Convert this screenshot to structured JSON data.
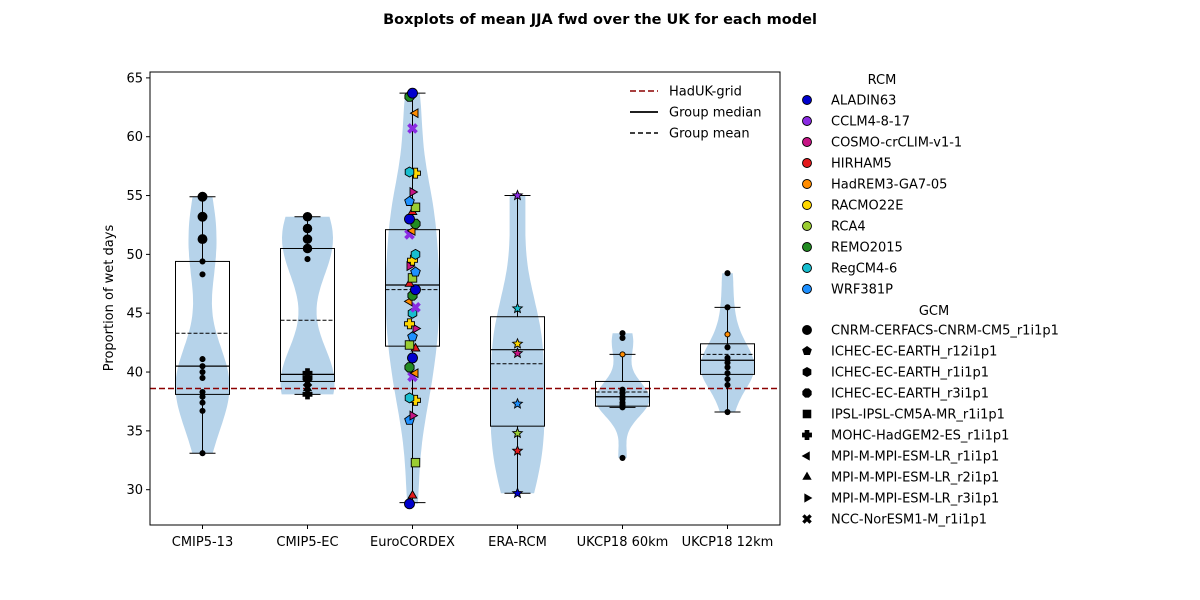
{
  "chart_data": {
    "type": "boxplot",
    "title": "Boxplots of mean JJA fwd over the UK for each model",
    "xlabel": "",
    "ylabel": "Proportion of wet days",
    "ylim": [
      27.0,
      65.5
    ],
    "yticks": [
      30,
      35,
      40,
      45,
      50,
      55,
      60,
      65
    ],
    "grid": false,
    "categories": [
      "CMIP5-13",
      "CMIP5-EC",
      "EuroCORDEX",
      "ERA-RCM",
      "UKCP18 60km",
      "UKCP18 12km"
    ],
    "reference_line": {
      "name": "HadUK-grid",
      "value": 38.6,
      "color": "#8b0000"
    },
    "legend_lines": [
      "HadUK-grid",
      "Group median",
      "Group mean"
    ],
    "legend_placement": "top-right",
    "boxes": [
      {
        "category": "CMIP5-13",
        "whisker_low": 33.1,
        "q1": 38.1,
        "median": 40.5,
        "q3": 49.4,
        "whisker_high": 54.9,
        "mean": 43.3,
        "points": [
          33.1,
          36.7,
          37.4,
          37.9,
          38.3,
          39.5,
          40.0,
          40.5,
          41.1,
          48.3,
          49.4,
          51.3,
          53.2,
          54.9
        ]
      },
      {
        "category": "CMIP5-EC",
        "whisker_low": 38.1,
        "q1": 39.2,
        "median": 39.8,
        "q3": 50.5,
        "whisker_high": 53.2,
        "mean": 44.4,
        "points": [
          38.1,
          38.6,
          39.1,
          39.5,
          39.9,
          49.6,
          50.5,
          51.3,
          52.2,
          53.2
        ]
      },
      {
        "category": "EuroCORDEX",
        "whisker_low": 28.9,
        "q1": 42.2,
        "median": 47.4,
        "q3": 52.1,
        "whisker_high": 63.7,
        "mean": 47.0,
        "points": [
          28.8,
          29.5,
          32.3,
          35.9,
          36.3,
          37.6,
          37.8,
          39.6,
          39.9,
          40.4,
          41.2,
          42.0,
          42.3,
          43.0,
          43.7,
          44.1,
          45.0,
          45.5,
          46.0,
          46.5,
          47.0,
          47.5,
          48.0,
          48.5,
          49.0,
          49.5,
          50.0,
          51.7,
          52.0,
          52.6,
          53.0,
          53.6,
          54.0,
          54.5,
          55.3,
          56.9,
          57.0,
          60.7,
          62.0,
          63.4,
          63.7
        ]
      },
      {
        "category": "ERA-RCM",
        "whisker_low": 29.7,
        "q1": 35.4,
        "median": 41.9,
        "q3": 44.7,
        "whisker_high": 55.0,
        "mean": 40.7,
        "points": [
          29.7,
          33.3,
          34.8,
          37.3,
          41.6,
          42.4,
          45.4,
          55.0
        ]
      },
      {
        "category": "UKCP18 60km",
        "whisker_low": 37.0,
        "q1": 37.1,
        "median": 37.9,
        "q3": 39.2,
        "whisker_high": 41.5,
        "mean": 38.3,
        "points": [
          32.7,
          37.0,
          37.2,
          37.4,
          37.7,
          37.9,
          38.2,
          38.5,
          41.5,
          42.9,
          43.3
        ]
      },
      {
        "category": "UKCP18 12km",
        "whisker_low": 36.6,
        "q1": 39.8,
        "median": 41.0,
        "q3": 42.4,
        "whisker_high": 45.5,
        "mean": 41.5,
        "points": [
          36.6,
          38.9,
          39.4,
          39.9,
          40.4,
          40.8,
          41.2,
          42.1,
          43.2,
          45.5,
          48.4
        ]
      }
    ],
    "rcm_legend": {
      "title": "RCM",
      "items": [
        {
          "name": "ALADIN63",
          "color": "#0000cd"
        },
        {
          "name": "CCLM4-8-17",
          "color": "#8a2be2"
        },
        {
          "name": "COSMO-crCLIM-v1-1",
          "color": "#c71585"
        },
        {
          "name": "HIRHAM5",
          "color": "#e31a1c"
        },
        {
          "name": "HadREM3-GA7-05",
          "color": "#ff8c00"
        },
        {
          "name": "RACMO22E",
          "color": "#ffd700"
        },
        {
          "name": "RCA4",
          "color": "#9acd32"
        },
        {
          "name": "REMO2015",
          "color": "#228b22"
        },
        {
          "name": "RegCM4-6",
          "color": "#17becf"
        },
        {
          "name": "WRF381P",
          "color": "#1e90ff"
        }
      ]
    },
    "gcm_legend": {
      "title": "GCM",
      "items": [
        {
          "name": "CNRM-CERFACS-CNRM-CM5_r1i1p1",
          "marker": "circle"
        },
        {
          "name": "ICHEC-EC-EARTH_r12i1p1",
          "marker": "pentagon"
        },
        {
          "name": "ICHEC-EC-EARTH_r1i1p1",
          "marker": "hexagon"
        },
        {
          "name": "ICHEC-EC-EARTH_r3i1p1",
          "marker": "octagon"
        },
        {
          "name": "IPSL-IPSL-CM5A-MR_r1i1p1",
          "marker": "square"
        },
        {
          "name": "MOHC-HadGEM2-ES_r1i1p1",
          "marker": "plus"
        },
        {
          "name": "MPI-M-MPI-ESM-LR_r1i1p1",
          "marker": "triangle-left"
        },
        {
          "name": "MPI-M-MPI-ESM-LR_r2i1p1",
          "marker": "triangle-up"
        },
        {
          "name": "MPI-M-MPI-ESM-LR_r3i1p1",
          "marker": "triangle-right"
        },
        {
          "name": "NCC-NorESM1-M_r1i1p1",
          "marker": "x"
        }
      ]
    },
    "violin_color": "#b6d3ea"
  }
}
